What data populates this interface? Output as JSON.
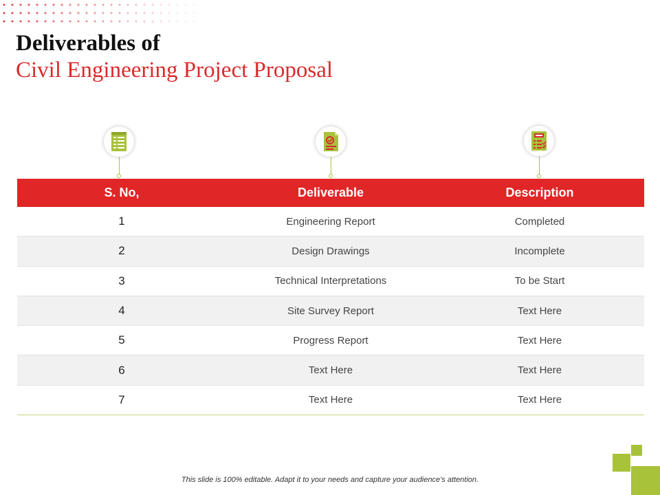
{
  "title": {
    "line1": "Deliverables of",
    "line2": "Civil Engineering Project Proposal"
  },
  "icons": [
    "report-document-icon",
    "drawing-document-icon",
    "checklist-document-icon"
  ],
  "table": {
    "headers": [
      "S. No,",
      "Deliverable",
      "Description"
    ],
    "rows": [
      {
        "num": "1",
        "deliverable": "Engineering Report",
        "description": "Completed"
      },
      {
        "num": "2",
        "deliverable": "Design Drawings",
        "description": "Incomplete"
      },
      {
        "num": "3",
        "deliverable": "Technical Interpretations",
        "description": "To be Start"
      },
      {
        "num": "4",
        "deliverable": "Site Survey Report",
        "description": "Text Here"
      },
      {
        "num": "5",
        "deliverable": "Progress Report",
        "description": "Text Here"
      },
      {
        "num": "6",
        "deliverable": "Text Here",
        "description": "Text Here"
      },
      {
        "num": "7",
        "deliverable": "Text Here",
        "description": "Text Here"
      }
    ]
  },
  "footer": "This slide is 100% editable. Adapt it to your needs and capture your audience's attention.",
  "colors": {
    "accent_red": "#e02626",
    "accent_green": "#a8c23a",
    "title_red": "#d92b2b"
  }
}
